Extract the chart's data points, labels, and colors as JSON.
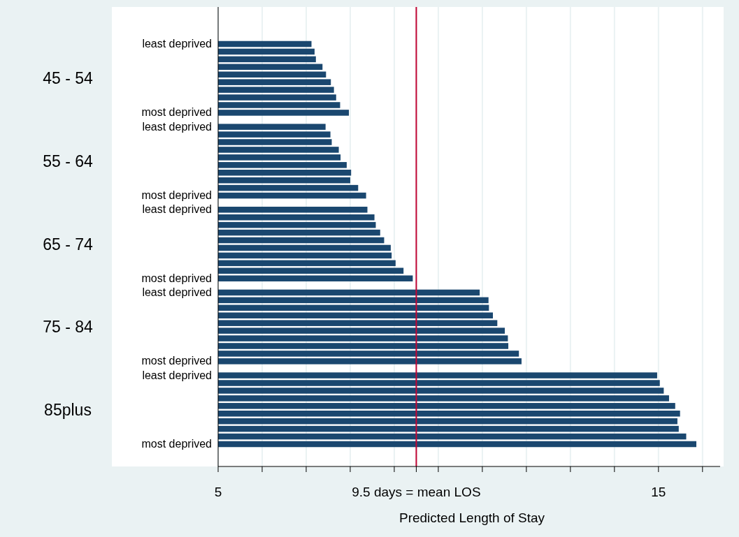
{
  "chart_data": {
    "type": "bar",
    "orientation": "horizontal",
    "xlabel": "Predicted Length of Stay",
    "categories": [
      "least deprived",
      null,
      null,
      null,
      null,
      null,
      null,
      null,
      null,
      "most deprived",
      "least deprived",
      null,
      null,
      null,
      null,
      null,
      null,
      null,
      null,
      "most deprived",
      "least deprived",
      null,
      null,
      null,
      null,
      null,
      null,
      null,
      null,
      "most deprived",
      "least deprived",
      null,
      null,
      null,
      null,
      null,
      null,
      null,
      null,
      "most deprived",
      "least deprived",
      null,
      null,
      null,
      null,
      null,
      null,
      null,
      null,
      "most deprived"
    ],
    "values": [
      7.12,
      7.19,
      7.22,
      7.37,
      7.45,
      7.56,
      7.63,
      7.68,
      7.77,
      7.97,
      7.44,
      7.55,
      7.58,
      7.74,
      7.78,
      7.92,
      8.02,
      8.0,
      8.18,
      8.36,
      8.39,
      8.55,
      8.58,
      8.68,
      8.77,
      8.92,
      8.94,
      9.03,
      9.21,
      9.42,
      10.94,
      11.14,
      11.15,
      11.24,
      11.34,
      11.51,
      11.58,
      11.59,
      11.83,
      11.89,
      14.97,
      15.03,
      15.12,
      15.24,
      15.38,
      15.49,
      15.43,
      15.46,
      15.63,
      15.86
    ],
    "color": "#1a476f",
    "annotations": [
      "45 - 54",
      "55 - 64",
      "65 - 74",
      "75 - 84",
      "85plus"
    ],
    "xlim": [
      5,
      16.4
    ],
    "xticks": [
      5,
      {
        "value": 6,
        "label": null
      },
      {
        "value": 7,
        "label": null
      },
      {
        "value": 8,
        "label": null
      },
      {
        "value": 9,
        "label": null
      },
      {
        "value": 9.5,
        "label": "9.5 days = mean LOS"
      },
      {
        "value": 10,
        "label": null
      },
      {
        "value": 11,
        "label": null
      },
      {
        "value": 12,
        "label": null
      },
      {
        "value": 13,
        "label": null
      },
      {
        "value": 14,
        "label": null
      },
      15,
      {
        "value": 16,
        "label": null
      }
    ],
    "ref_lines": [
      {
        "axis": "x",
        "value": 9.5,
        "color": "#c10534"
      }
    ],
    "grid": "x"
  }
}
